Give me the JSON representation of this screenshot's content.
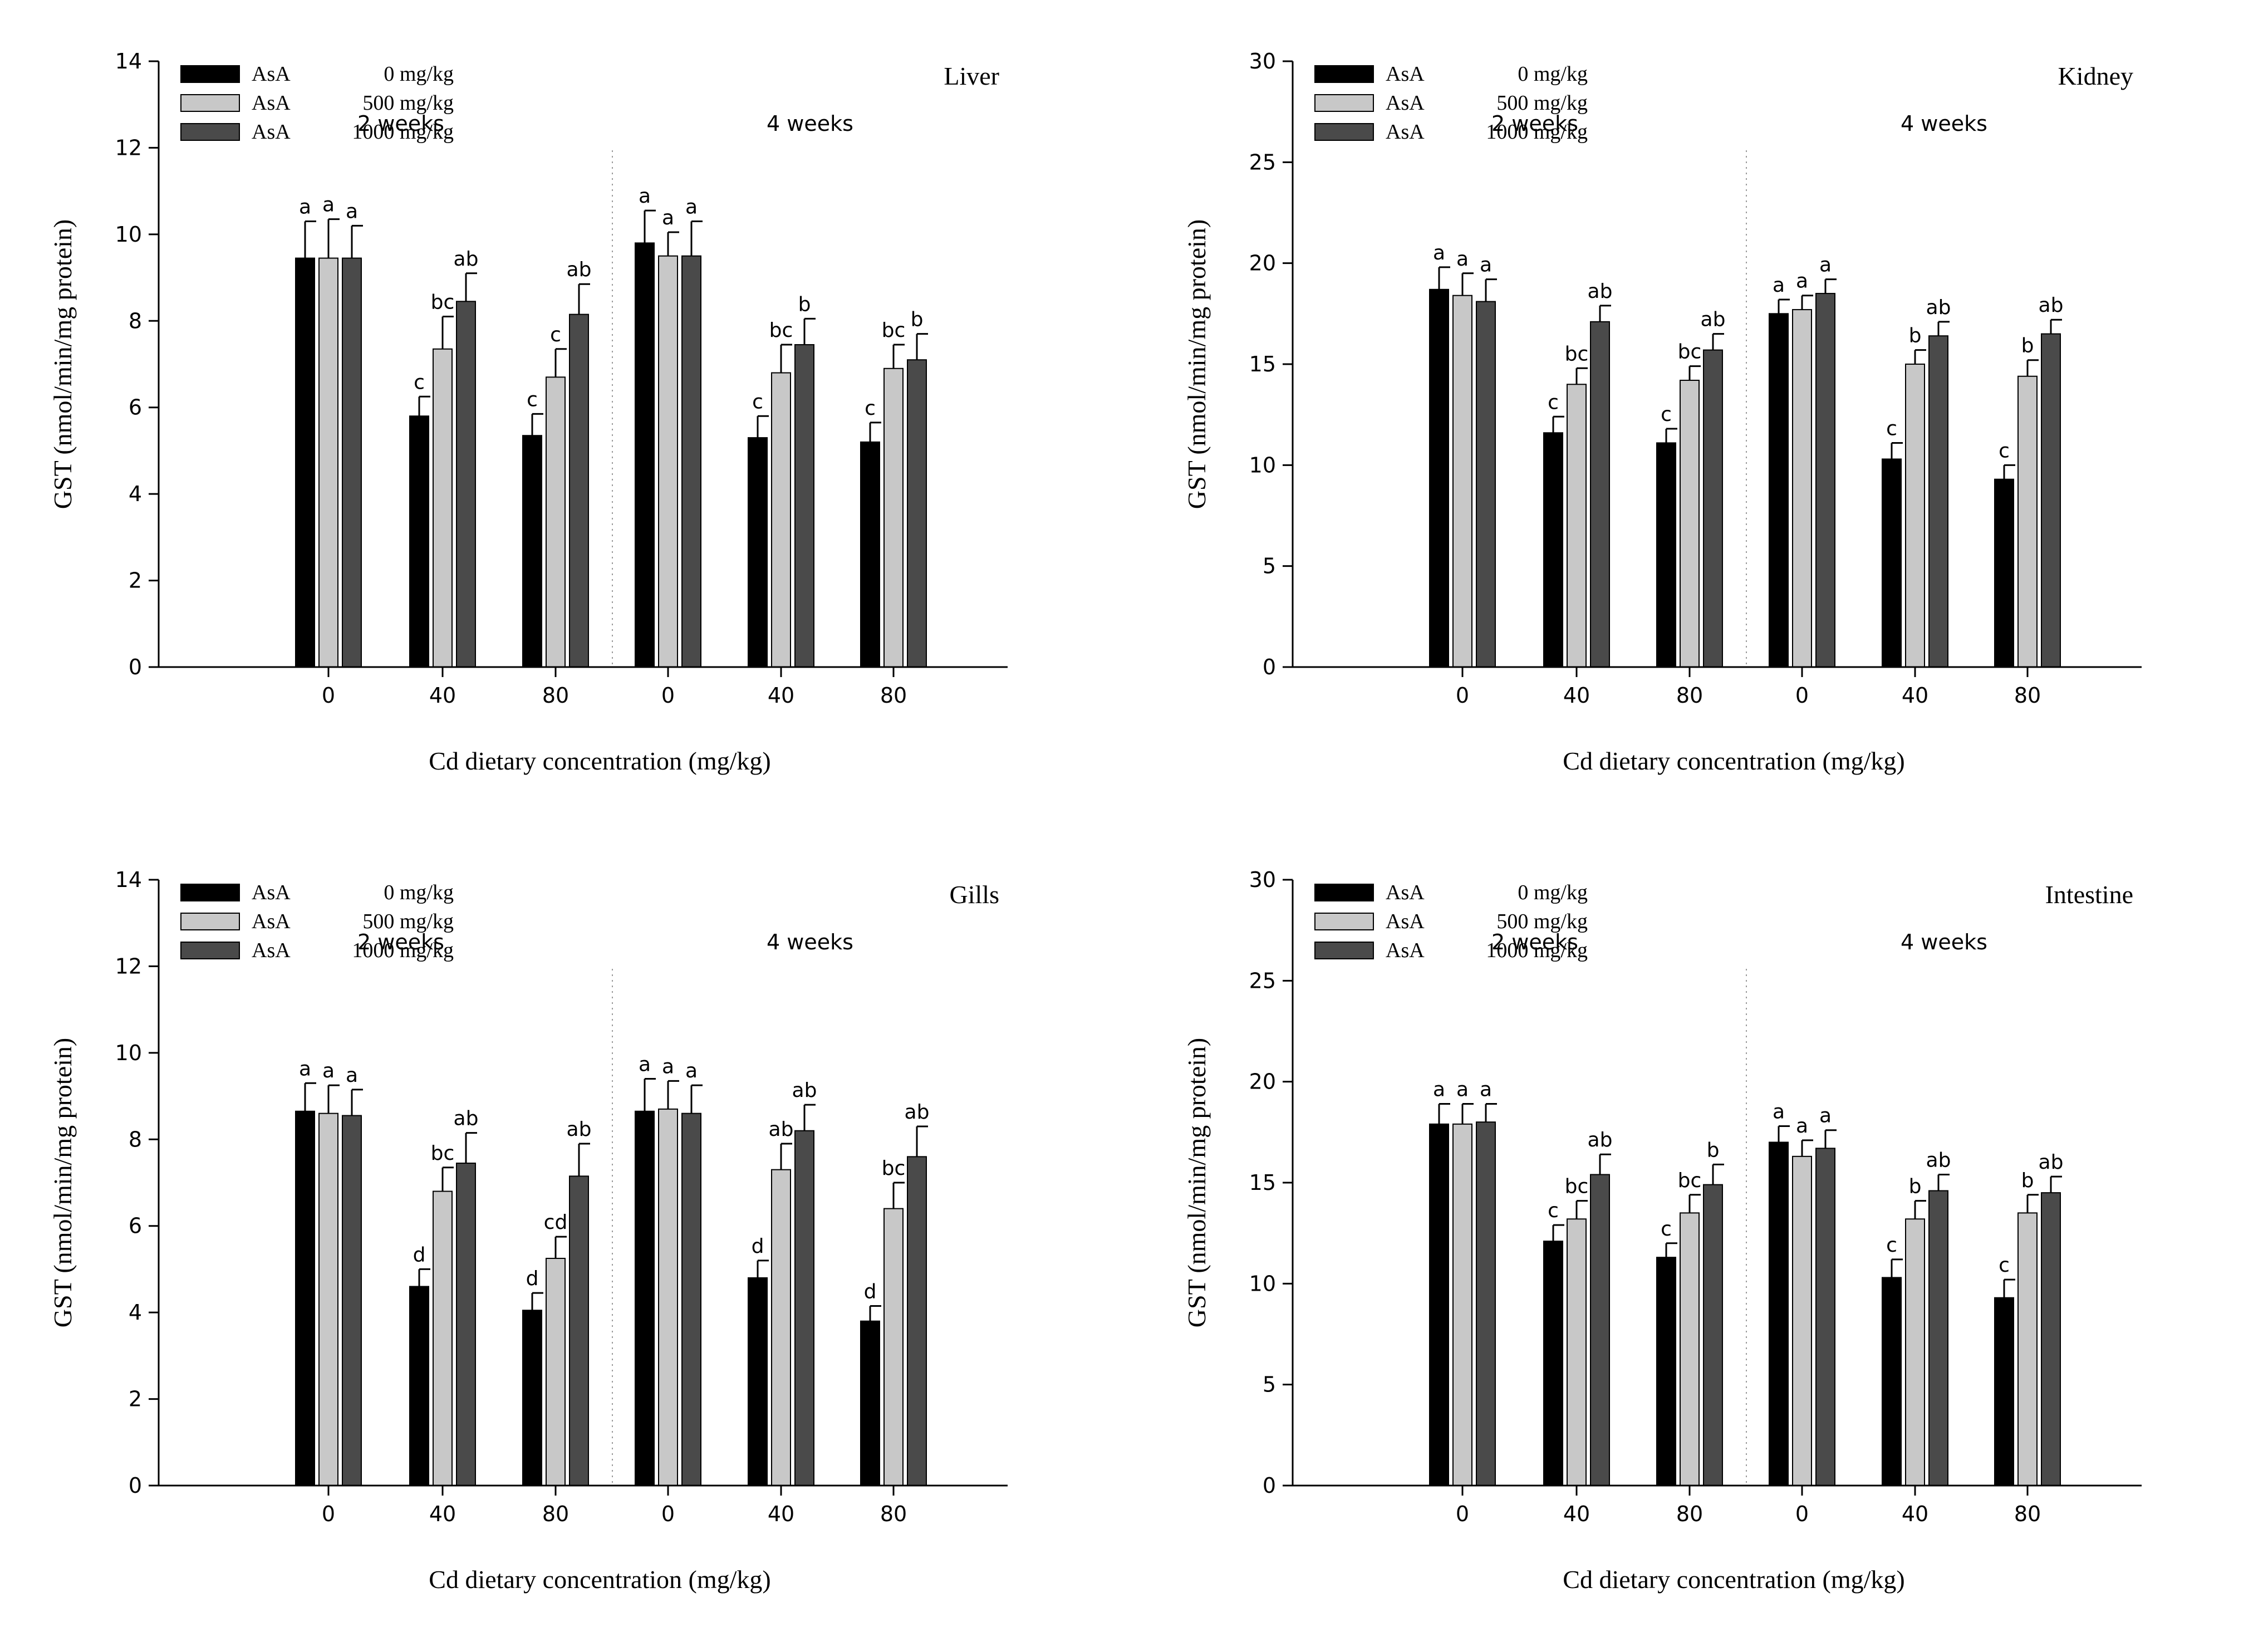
{
  "legend": [
    {
      "name": "AsA",
      "dose": "0 mg/kg",
      "color": "#000000"
    },
    {
      "name": "AsA",
      "dose": "500 mg/kg",
      "color": "#c8c8c8"
    },
    {
      "name": "AsA",
      "dose": "1000 mg/kg",
      "color": "#4a4a4a"
    }
  ],
  "chart_data": [
    {
      "type": "bar",
      "tissue": "Liver",
      "xlabel": "Cd dietary concentration (mg/kg)",
      "ylabel": "GST (nmol/min/mg protein)",
      "ylim": [
        0,
        14
      ],
      "yticks": [
        "0",
        "2",
        "4",
        "6",
        "8",
        "10",
        "12",
        "14"
      ],
      "periods": [
        "2 weeks",
        "4 weeks"
      ],
      "categories": [
        "0",
        "40",
        "80",
        "0",
        "40",
        "80"
      ],
      "series": [
        {
          "name": "AsA 0 mg/kg",
          "values": [
            9.45,
            5.8,
            5.35,
            9.8,
            5.3,
            5.2
          ],
          "errors": [
            0.85,
            0.45,
            0.5,
            0.75,
            0.5,
            0.45
          ],
          "letters": [
            "a",
            "c",
            "c",
            "a",
            "c",
            "c"
          ]
        },
        {
          "name": "AsA 500 mg/kg",
          "values": [
            9.45,
            7.35,
            6.7,
            9.5,
            6.8,
            6.9
          ],
          "errors": [
            0.9,
            0.75,
            0.65,
            0.55,
            0.65,
            0.55
          ],
          "letters": [
            "a",
            "bc",
            "c",
            "a",
            "bc",
            "bc"
          ]
        },
        {
          "name": "AsA 1000 mg/kg",
          "values": [
            9.45,
            8.45,
            8.15,
            9.5,
            7.45,
            7.1
          ],
          "errors": [
            0.75,
            0.65,
            0.7,
            0.8,
            0.6,
            0.6
          ],
          "letters": [
            "a",
            "ab",
            "ab",
            "a",
            "b",
            "b"
          ]
        }
      ]
    },
    {
      "type": "bar",
      "tissue": "Kidney",
      "xlabel": "Cd dietary concentration (mg/kg)",
      "ylabel": "GST (nmol/min/mg protein)",
      "ylim": [
        0,
        30
      ],
      "yticks": [
        "0",
        "5",
        "10",
        "15",
        "20",
        "25",
        "30"
      ],
      "periods": [
        "2 weeks",
        "4 weeks"
      ],
      "categories": [
        "0",
        "40",
        "80",
        "0",
        "40",
        "80"
      ],
      "series": [
        {
          "name": "AsA 0 mg/kg",
          "values": [
            18.7,
            11.6,
            11.1,
            17.5,
            10.3,
            9.3
          ],
          "errors": [
            1.1,
            0.8,
            0.7,
            0.7,
            0.8,
            0.7
          ],
          "letters": [
            "a",
            "c",
            "c",
            "a",
            "c",
            "c"
          ]
        },
        {
          "name": "AsA 500 mg/kg",
          "values": [
            18.4,
            14.0,
            14.2,
            17.7,
            15.0,
            14.4
          ],
          "errors": [
            1.1,
            0.8,
            0.7,
            0.7,
            0.7,
            0.8
          ],
          "letters": [
            "a",
            "bc",
            "bc",
            "a",
            "b",
            "b"
          ]
        },
        {
          "name": "AsA 1000 mg/kg",
          "values": [
            18.1,
            17.1,
            15.7,
            18.5,
            16.4,
            16.5
          ],
          "errors": [
            1.1,
            0.8,
            0.8,
            0.7,
            0.7,
            0.7
          ],
          "letters": [
            "a",
            "ab",
            "ab",
            "a",
            "ab",
            "ab"
          ]
        }
      ]
    },
    {
      "type": "bar",
      "tissue": "Gills",
      "xlabel": "Cd dietary concentration (mg/kg)",
      "ylabel": "GST (nmol/min/mg protein)",
      "ylim": [
        0,
        14
      ],
      "yticks": [
        "0",
        "2",
        "4",
        "6",
        "8",
        "10",
        "12",
        "14"
      ],
      "periods": [
        "2 weeks",
        "4 weeks"
      ],
      "categories": [
        "0",
        "40",
        "80",
        "0",
        "40",
        "80"
      ],
      "series": [
        {
          "name": "AsA 0 mg/kg",
          "values": [
            8.65,
            4.6,
            4.05,
            8.65,
            4.8,
            3.8
          ],
          "errors": [
            0.65,
            0.4,
            0.4,
            0.75,
            0.4,
            0.35
          ],
          "letters": [
            "a",
            "d",
            "d",
            "a",
            "d",
            "d"
          ]
        },
        {
          "name": "AsA 500 mg/kg",
          "values": [
            8.6,
            6.8,
            5.25,
            8.7,
            7.3,
            6.4
          ],
          "errors": [
            0.65,
            0.55,
            0.5,
            0.65,
            0.6,
            0.6
          ],
          "letters": [
            "a",
            "bc",
            "cd",
            "a",
            "ab",
            "bc"
          ]
        },
        {
          "name": "AsA 1000 mg/kg",
          "values": [
            8.55,
            7.45,
            7.15,
            8.6,
            8.2,
            7.6
          ],
          "errors": [
            0.6,
            0.7,
            0.75,
            0.65,
            0.6,
            0.7
          ],
          "letters": [
            "a",
            "ab",
            "ab",
            "a",
            "ab",
            "ab"
          ]
        }
      ]
    },
    {
      "type": "bar",
      "tissue": "Intestine",
      "xlabel": "Cd dietary concentration (mg/kg)",
      "ylabel": "GST (nmol/min/mg protein)",
      "ylim": [
        0,
        30
      ],
      "yticks": [
        "0",
        "5",
        "10",
        "15",
        "20",
        "25",
        "30"
      ],
      "periods": [
        "2 weeks",
        "4 weeks"
      ],
      "categories": [
        "0",
        "40",
        "80",
        "0",
        "40",
        "80"
      ],
      "series": [
        {
          "name": "AsA 0 mg/kg",
          "values": [
            17.9,
            12.1,
            11.3,
            17.0,
            10.3,
            9.3
          ],
          "errors": [
            1.0,
            0.8,
            0.7,
            0.8,
            0.9,
            0.9
          ],
          "letters": [
            "a",
            "c",
            "c",
            "a",
            "c",
            "c"
          ]
        },
        {
          "name": "AsA 500 mg/kg",
          "values": [
            17.9,
            13.2,
            13.5,
            16.3,
            13.2,
            13.5
          ],
          "errors": [
            1.0,
            0.9,
            0.9,
            0.8,
            0.9,
            0.9
          ],
          "letters": [
            "a",
            "bc",
            "bc",
            "a",
            "b",
            "b"
          ]
        },
        {
          "name": "AsA 1000 mg/kg",
          "values": [
            18.0,
            15.4,
            14.9,
            16.7,
            14.6,
            14.5
          ],
          "errors": [
            0.9,
            1.0,
            1.0,
            0.9,
            0.8,
            0.8
          ],
          "letters": [
            "a",
            "ab",
            "b",
            "a",
            "ab",
            "ab"
          ]
        }
      ]
    }
  ]
}
